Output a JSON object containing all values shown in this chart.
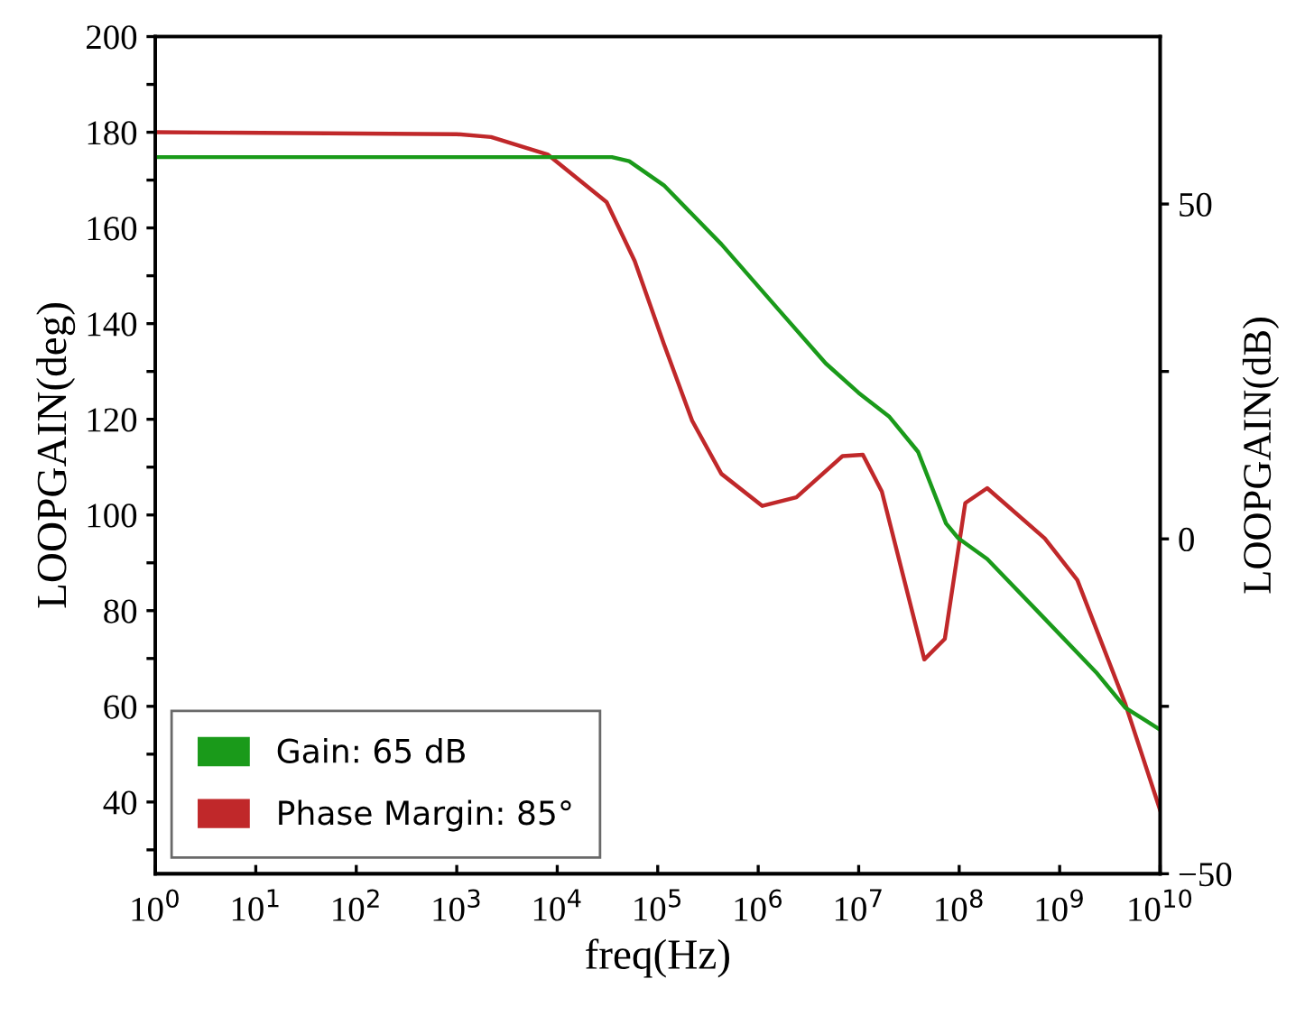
{
  "chart_data": {
    "type": "line",
    "xlabel": "freq(Hz)",
    "ylabel": "LOOPGAIN(deg)",
    "y2label": "LOOPGAIN(dB)",
    "log": "x",
    "grid": false,
    "legend": "bottom left",
    "marker": "none",
    "line_style": "solid",
    "xlim": [
      1,
      10000000000.0
    ],
    "xticks": [
      {
        "value": 1,
        "label": "10$^{0}$"
      },
      {
        "value": 10,
        "label": "10$^{1}$"
      },
      {
        "value": 100,
        "label": "10$^{2}$"
      },
      {
        "value": 1000,
        "label": "10$^{3}$"
      },
      {
        "value": 10000.0,
        "label": "10$^{4}$"
      },
      {
        "value": 100000.0,
        "label": "10$^{5}$"
      },
      {
        "value": 1000000.0,
        "label": "10$^{6}$"
      },
      {
        "value": 10000000.0,
        "label": "10$^{7}$"
      },
      {
        "value": 100000000.0,
        "label": "10$^{8}$"
      },
      {
        "value": 1000000000.0,
        "label": "10$^{9}$"
      },
      {
        "value": 10000000000.0,
        "label": "10$^{10}$"
      }
    ],
    "ylim": [
      25,
      200
    ],
    "yticks": [
      {
        "value": 30,
        "label": null
      },
      40,
      {
        "value": 50,
        "label": null
      },
      60,
      {
        "value": 70,
        "label": null
      },
      80,
      {
        "value": 90,
        "label": null
      },
      100,
      {
        "value": 110,
        "label": null
      },
      120,
      {
        "value": 130,
        "label": null
      },
      140,
      {
        "value": 150,
        "label": null
      },
      160,
      {
        "value": 170,
        "label": null
      },
      180,
      {
        "value": 190,
        "label": null
      },
      200
    ],
    "y2lim": [
      -50,
      75
    ],
    "y2ticks": [
      {
        "value": -50,
        "label": "−50"
      },
      {
        "value": -25,
        "label": null
      },
      0,
      {
        "value": 25,
        "label": null
      },
      50
    ],
    "series": [
      {
        "name": "Gain: 65 dB",
        "color": "#1a9a1a",
        "axis": "y2",
        "x": [
          1,
          35000.0,
          52000.0,
          115000.0,
          430000.0,
          1600000.0,
          4700000.0,
          10000000.0,
          20000000.0,
          39000000.0,
          74000000.0,
          98000000.0,
          190000000.0,
          620000000.0,
          2300000000.0,
          4500000000.0,
          10000000000.0
        ],
        "values": [
          57,
          57,
          56.4,
          52.8,
          44.0,
          34.2,
          26.2,
          21.8,
          18.3,
          13.0,
          2.3,
          0.1,
          -3.0,
          -11.0,
          -19.9,
          -25.2,
          -28.5
        ]
      },
      {
        "name": "Phase Margin: 85°",
        "color": "#c0282a",
        "x": [
          1,
          1000.0,
          2200.0,
          8100.0,
          31000.0,
          59000.0,
          115000.0,
          220000.0,
          430000.0,
          1100000.0,
          2400000.0,
          6900000.0,
          11000000.0,
          17000000.0,
          45000000.0,
          72000000.0,
          115000000.0,
          190000000.0,
          710000000.0,
          1500000000.0,
          4500000000.0,
          10000000000.0
        ],
        "values": [
          180,
          179.6,
          179.0,
          175.3,
          165.4,
          153.1,
          135.8,
          119.7,
          108.6,
          101.9,
          103.7,
          112.3,
          112.6,
          104.9,
          69.8,
          74.1,
          102.5,
          105.6,
          95.1,
          86.4,
          60.5,
          38.3
        ]
      }
    ]
  }
}
